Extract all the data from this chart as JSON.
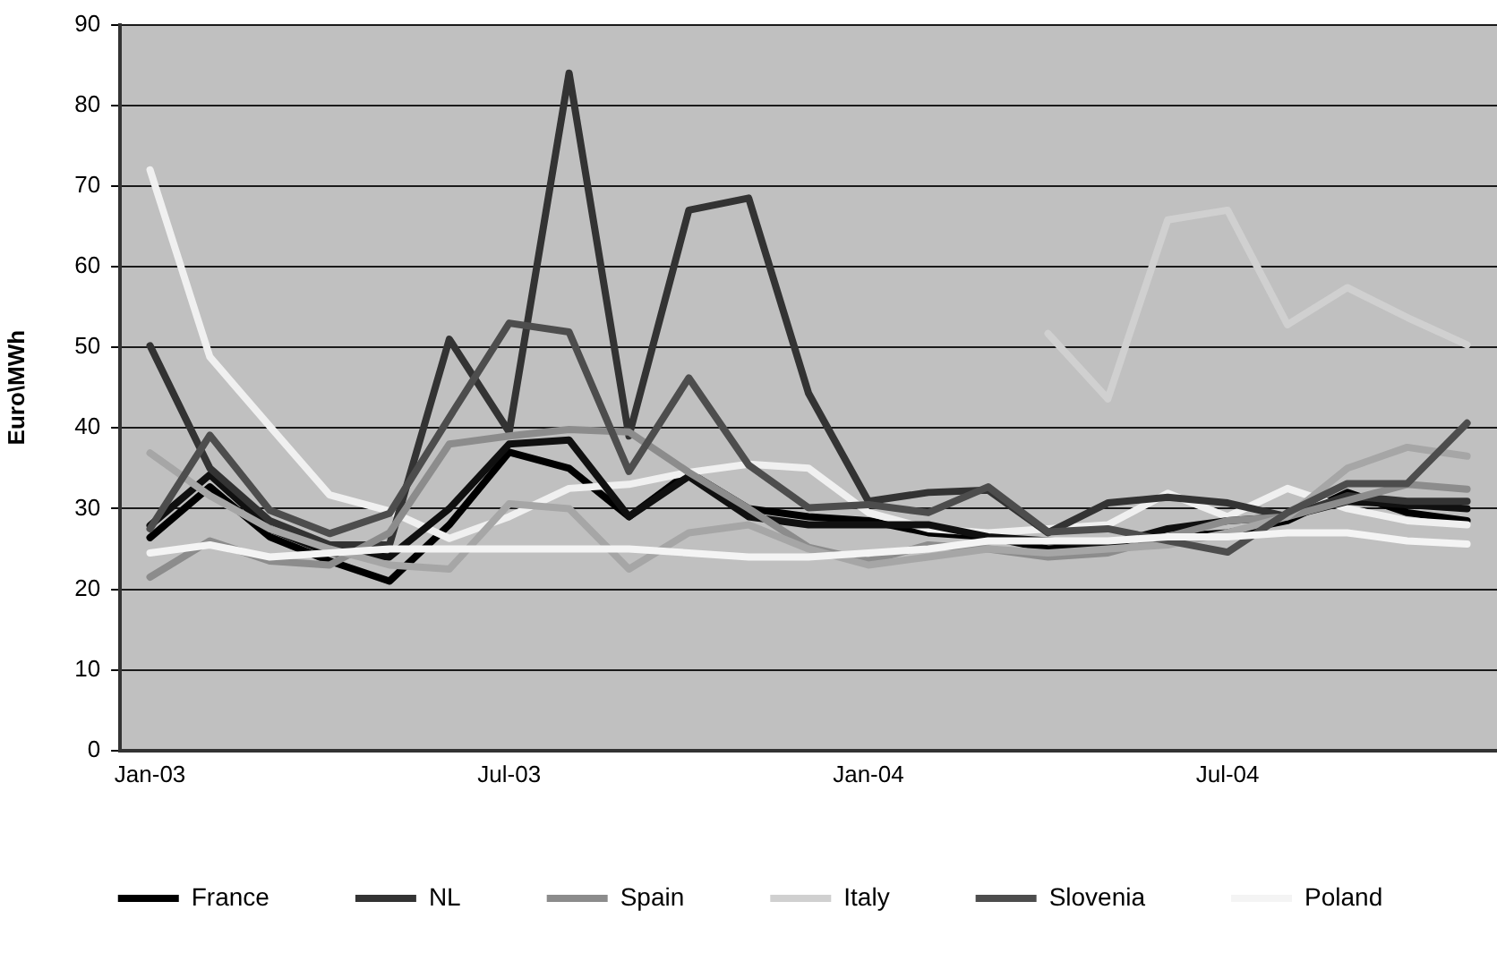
{
  "chart_data": {
    "type": "line",
    "ylabel": "Euro\\MWh",
    "categories": [
      "Jan-03",
      null,
      null,
      null,
      null,
      null,
      "Jul-03",
      null,
      null,
      null,
      null,
      null,
      "Jan-04",
      null,
      null,
      null,
      null,
      null,
      "Jul-04",
      null,
      null,
      null,
      null
    ],
    "ylim": [
      0,
      90
    ],
    "yticks": [
      0,
      10,
      20,
      30,
      40,
      50,
      60,
      70,
      80,
      90
    ],
    "grid": "y",
    "legend": "bottom",
    "marker": "none",
    "series": [
      {
        "name": "France",
        "color": "#000000",
        "values": [
          26.4,
          32.7,
          26.5,
          23.5,
          21,
          28,
          37,
          35,
          29,
          34.5,
          30,
          29,
          28.5,
          27,
          26.5,
          25,
          25.5,
          26.5,
          27,
          28.5,
          32,
          29.5,
          28.5
        ]
      },
      {
        "color": "#f0f0f0",
        "values": [
          72,
          48.8,
          40.2,
          31.7,
          29.7,
          26.3,
          29,
          32.5,
          33,
          34.5,
          35.5,
          35,
          29.5,
          27.5,
          27,
          27.5,
          28,
          31.9,
          29,
          32.5,
          30,
          28.5,
          28
        ]
      },
      {
        "color": "#101010",
        "values": [
          27.9,
          34.2,
          27.5,
          24.5,
          24,
          30,
          38,
          38.5,
          29,
          34,
          29,
          28,
          28,
          28,
          26.5,
          26,
          25.5,
          27.5,
          28.5,
          29,
          30.9,
          30.5,
          30
        ]
      },
      {
        "name": "NL",
        "color": "#333333",
        "values": [
          50.2,
          35,
          28.5,
          25.5,
          25.5,
          51,
          39.5,
          84,
          39,
          67,
          68.5,
          44.3,
          30.9,
          32,
          32.3,
          27,
          30.7,
          31.4,
          30.7,
          29,
          31.6,
          30.9,
          30.9
        ]
      },
      {
        "name": "Spain",
        "color": "#8c8c8c",
        "values": [
          21.5,
          26,
          23.5,
          23,
          27,
          38,
          39,
          39.8,
          39.5,
          34.5,
          30,
          25.2,
          23.5,
          25.5,
          25,
          24,
          24.5,
          26.5,
          28.5,
          29,
          31,
          33,
          32.4
        ]
      },
      {
        "color": "#a6a6a6",
        "values": [
          36.9,
          31.6,
          27.5,
          25,
          23,
          22.5,
          30.6,
          30,
          22.5,
          27,
          28,
          25,
          23,
          24,
          25,
          24.5,
          25,
          25.5,
          27,
          29,
          35,
          37.6,
          36.5
        ]
      },
      {
        "name": "Italy",
        "color": "#d0d0d0",
        "values": [
          null,
          null,
          null,
          null,
          null,
          null,
          null,
          null,
          null,
          null,
          null,
          null,
          null,
          null,
          null,
          51.7,
          43.6,
          65.8,
          67,
          52.8,
          57.4,
          53.7,
          50.3
        ]
      },
      {
        "name": "Slovenia",
        "color": "#4d4d4d",
        "values": [
          27.5,
          39.1,
          29.8,
          26.9,
          29.4,
          41.3,
          53,
          51.9,
          34.6,
          46.2,
          35.4,
          30.1,
          30.5,
          29.5,
          32.7,
          27.1,
          27.5,
          26,
          24.6,
          29.5,
          33.1,
          33.1,
          40.6
        ]
      },
      {
        "name": "Poland",
        "color": "#f4f4f4",
        "values": [
          24.5,
          25.5,
          24,
          24.5,
          25,
          25,
          25,
          25,
          25,
          24.5,
          24,
          24,
          24.5,
          25,
          26,
          26,
          26,
          26.5,
          26.5,
          27,
          27,
          26,
          25.6
        ]
      }
    ]
  }
}
